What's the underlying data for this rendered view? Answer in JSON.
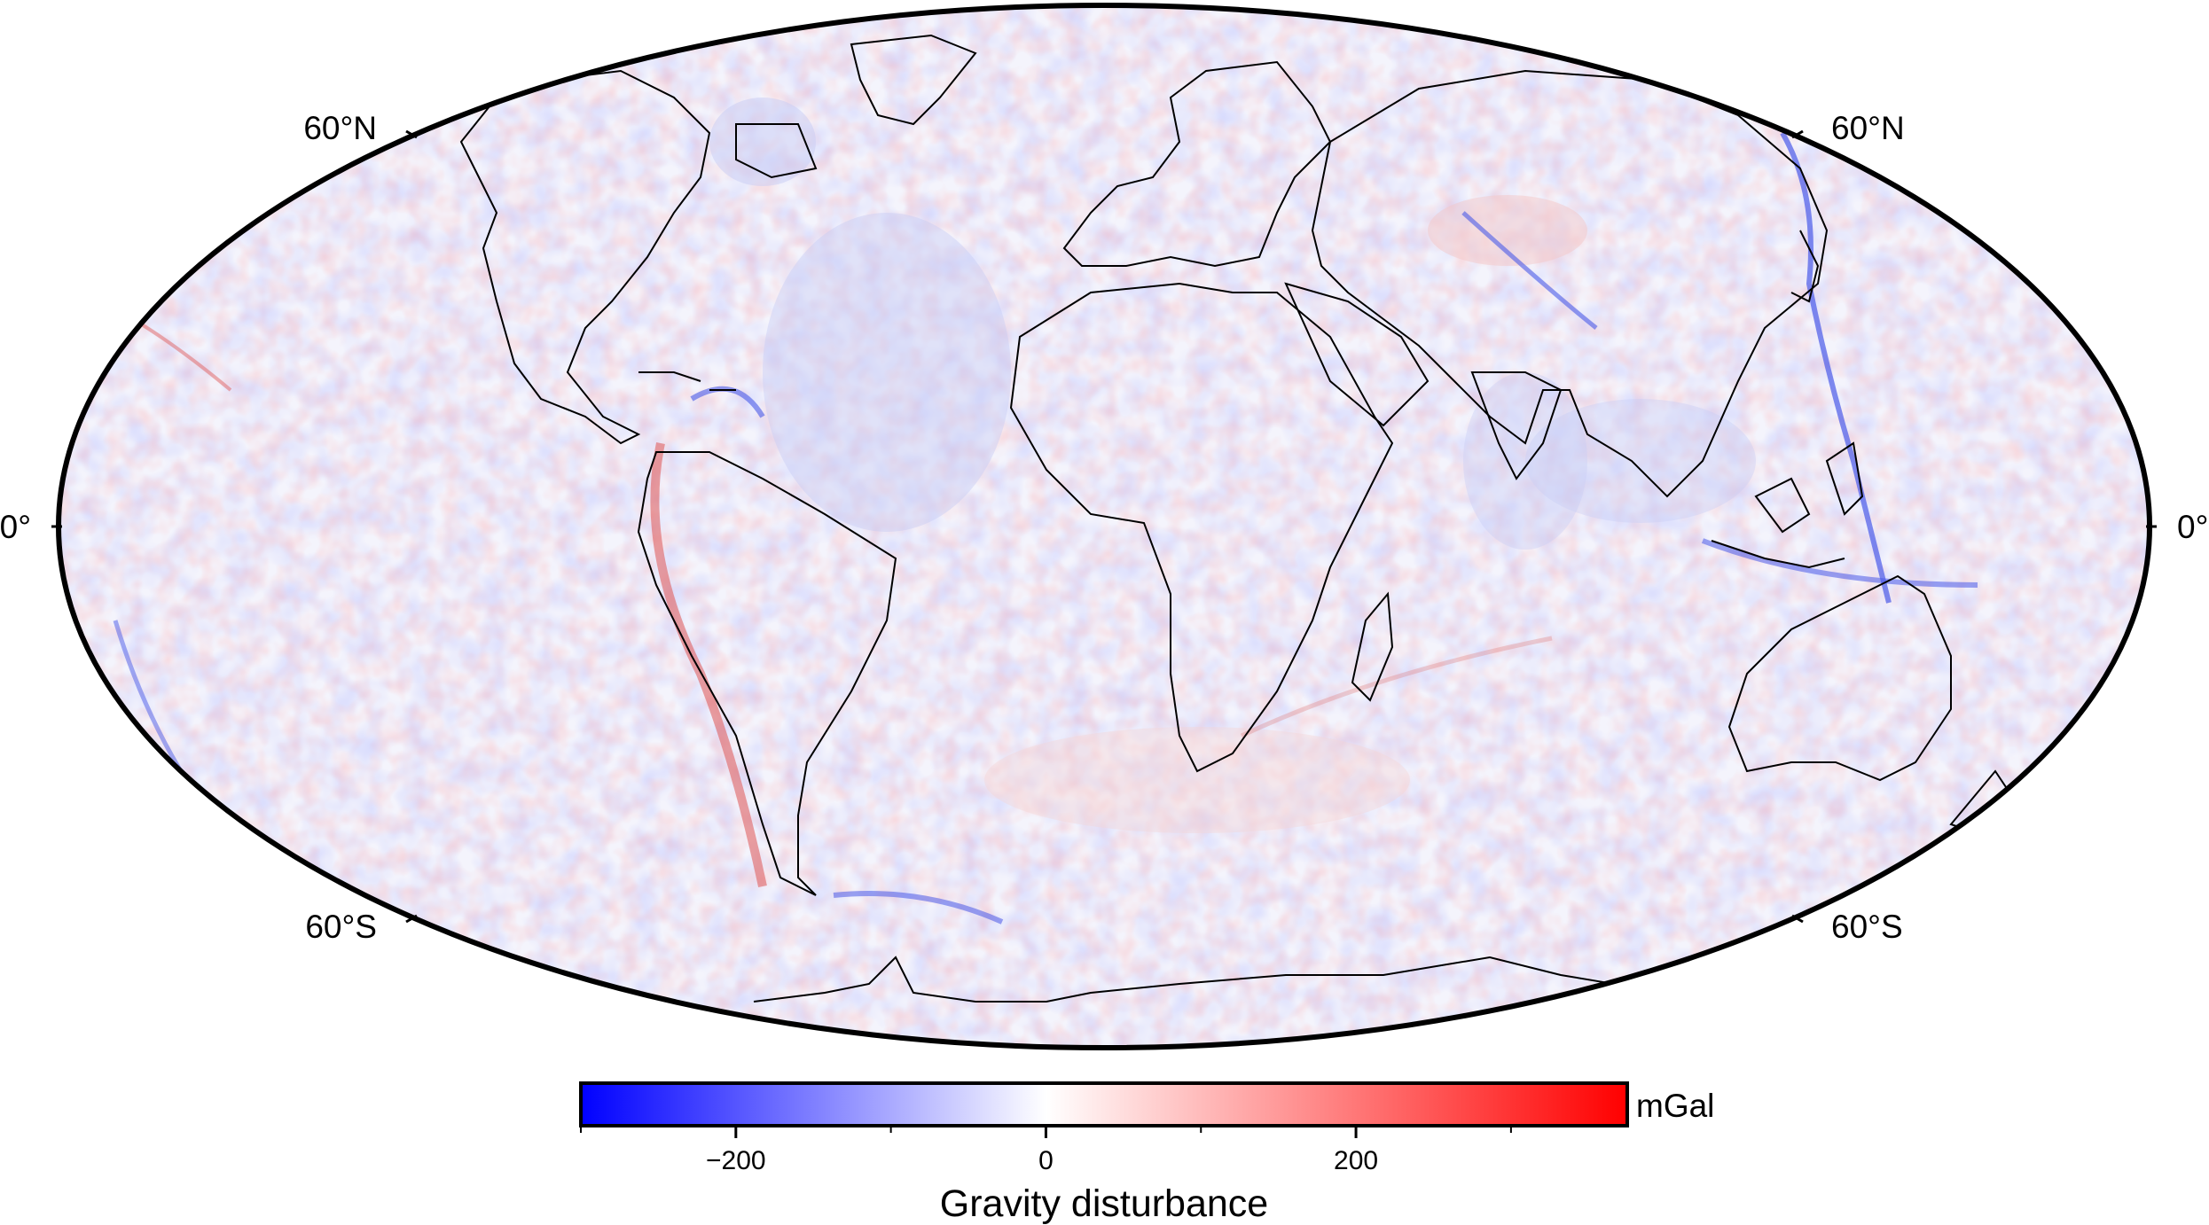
{
  "map": {
    "projection": "mollweide",
    "field": "gravity disturbance",
    "lat_labels": {
      "n60_left": "60°N",
      "n60_right": "60°N",
      "eq_left": "0°",
      "eq_right": "0°",
      "s60_left": "60°S",
      "s60_right": "60°S"
    },
    "colors": {
      "negative": "#0000ff",
      "zero": "#ffffff",
      "positive": "#ff0000",
      "coastline": "#000000",
      "frame": "#000000"
    }
  },
  "colorbar": {
    "title": "Gravity disturbance",
    "unit": "mGal",
    "min": -300,
    "max": 375,
    "tick_labels": [
      "−200",
      "0",
      "200"
    ],
    "tick_values": [
      -200,
      0,
      200
    ],
    "minor_tick_values": [
      -300,
      -100,
      100,
      300
    ]
  }
}
